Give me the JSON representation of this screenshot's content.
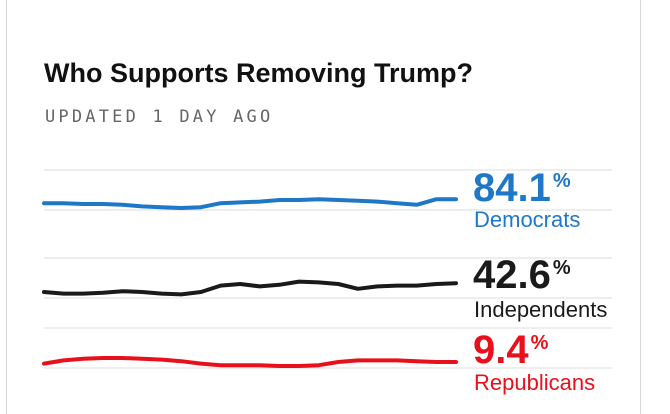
{
  "header": {
    "title": "Who Supports Removing Trump?",
    "subtitle": "UPDATED 1 DAY AGO"
  },
  "chart_data": {
    "type": "line",
    "title": "Who Supports Removing Trump?",
    "subtitle": "UPDATED 1 DAY AGO",
    "grid": true,
    "legend": "right",
    "series": [
      {
        "name": "Democrats",
        "value": "84.1",
        "unit": "%",
        "color": "#1f77c8",
        "values": [
          83.6,
          83.6,
          83.5,
          83.5,
          83.4,
          83.2,
          83.1,
          83.0,
          83.1,
          83.6,
          83.7,
          83.8,
          84.0,
          84.0,
          84.1,
          84.0,
          83.9,
          83.8,
          83.6,
          83.4,
          84.1,
          84.1
        ]
      },
      {
        "name": "Independents",
        "value": "42.6",
        "unit": "%",
        "color": "#1a1a1a",
        "values": [
          41.5,
          41.3,
          41.3,
          41.4,
          41.6,
          41.5,
          41.3,
          41.2,
          41.5,
          42.3,
          42.5,
          42.2,
          42.4,
          42.8,
          42.7,
          42.5,
          41.9,
          42.2,
          42.3,
          42.3,
          42.5,
          42.6
        ]
      },
      {
        "name": "Republicans",
        "value": "9.4",
        "unit": "%",
        "color": "#e8101a",
        "values": [
          9.2,
          9.6,
          9.8,
          9.9,
          9.9,
          9.8,
          9.7,
          9.5,
          9.2,
          9.0,
          9.0,
          9.0,
          8.9,
          8.9,
          9.0,
          9.4,
          9.6,
          9.6,
          9.6,
          9.5,
          9.4,
          9.4
        ]
      }
    ]
  }
}
